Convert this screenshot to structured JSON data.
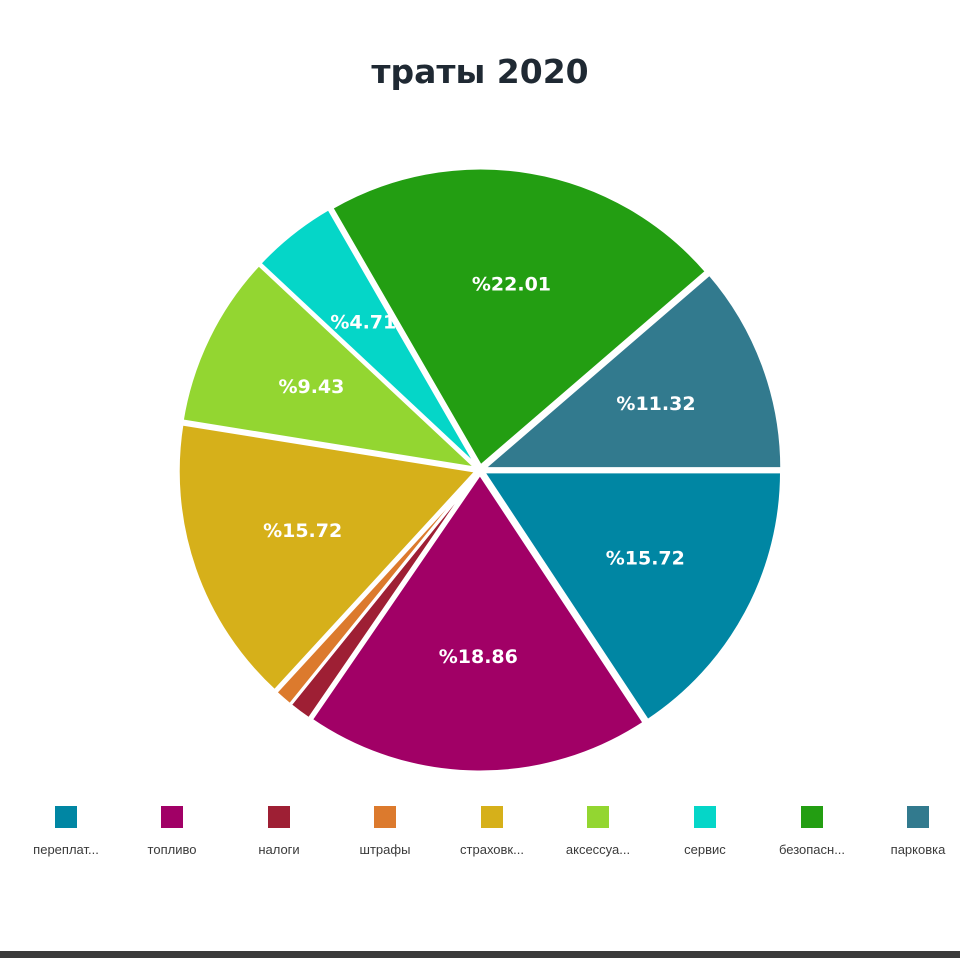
{
  "chart_data": {
    "type": "pie",
    "title": "траты 2020",
    "slices": [
      {
        "label": "переплат...",
        "value": 15.72,
        "display": "%15.72",
        "color": "#0086a3"
      },
      {
        "label": "топливо",
        "value": 18.86,
        "display": "%18.86",
        "color": "#a10066"
      },
      {
        "label": "налоги",
        "value": 1.25,
        "display": "",
        "color": "#9e1f34"
      },
      {
        "label": "штрафы",
        "value": 1.0,
        "display": "",
        "color": "#dc7a2d"
      },
      {
        "label": "страховк...",
        "value": 15.72,
        "display": "%15.72",
        "color": "#d6b01a"
      },
      {
        "label": "аксессуа...",
        "value": 9.43,
        "display": "%9.43",
        "color": "#93d631"
      },
      {
        "label": "сервис",
        "value": 4.71,
        "display": "%4.71",
        "color": "#05d6c8"
      },
      {
        "label": "безопасн...",
        "value": 22.01,
        "display": "%22.01",
        "color": "#239e12"
      },
      {
        "label": "парковка",
        "value": 11.32,
        "display": "%11.32",
        "color": "#327a8e"
      }
    ],
    "legend_position": "bottom"
  }
}
